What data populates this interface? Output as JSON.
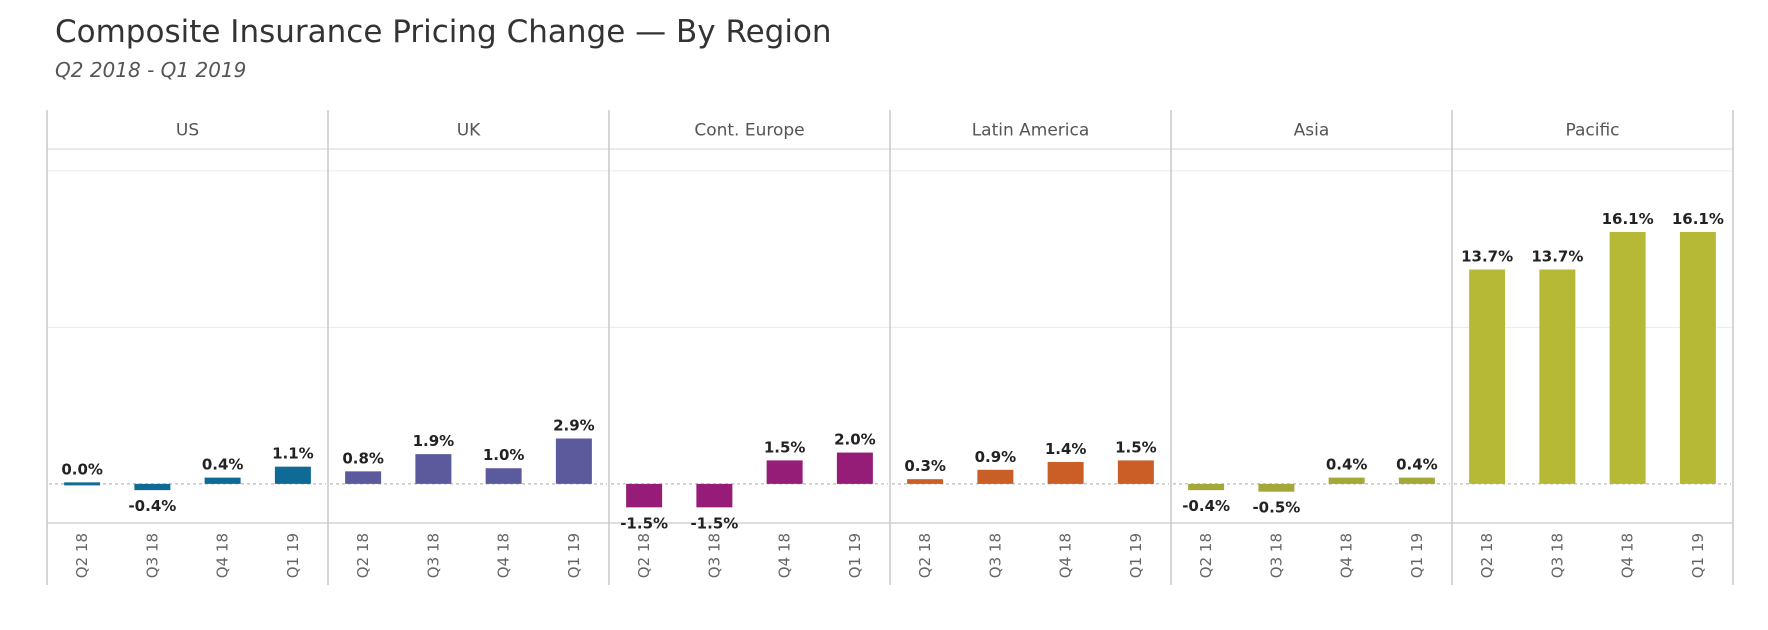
{
  "title": "Composite Insurance Pricing Change — By Region",
  "subtitle": "Q2 2018 - Q1 2019",
  "chart_data": {
    "type": "bar",
    "categories": [
      "Q2 18",
      "Q3 18",
      "Q4 18",
      "Q1 19"
    ],
    "ylim": [
      -2.5,
      21.4
    ],
    "grid": true,
    "panels": [
      {
        "name": "US",
        "color": "#0f6a96",
        "values": [
          0.0,
          -0.4,
          0.4,
          1.1
        ],
        "labels": [
          "0.0%",
          "-0.4%",
          "0.4%",
          "1.1%"
        ]
      },
      {
        "name": "UK",
        "color": "#5a5a9c",
        "values": [
          0.8,
          1.9,
          1.0,
          2.9
        ],
        "labels": [
          "0.8%",
          "1.9%",
          "1.0%",
          "2.9%"
        ]
      },
      {
        "name": "Cont. Europe",
        "color": "#951d77",
        "values": [
          -1.5,
          -1.5,
          1.5,
          2.0
        ],
        "labels": [
          "-1.5%",
          "-1.5%",
          "1.5%",
          "2.0%"
        ]
      },
      {
        "name": "Latin America",
        "color": "#c95f26",
        "values": [
          0.3,
          0.9,
          1.4,
          1.5
        ],
        "labels": [
          "0.3%",
          "0.9%",
          "1.4%",
          "1.5%"
        ]
      },
      {
        "name": "Asia",
        "color": "#a3a838",
        "values": [
          -0.4,
          -0.5,
          0.4,
          0.4
        ],
        "labels": [
          "-0.4%",
          "-0.5%",
          "0.4%",
          "0.4%"
        ]
      },
      {
        "name": "Pacific",
        "color": "#b5b935",
        "values": [
          13.7,
          13.7,
          16.1,
          16.1
        ],
        "labels": [
          "13.7%",
          "13.7%",
          "16.1%",
          "16.1%"
        ]
      }
    ]
  }
}
